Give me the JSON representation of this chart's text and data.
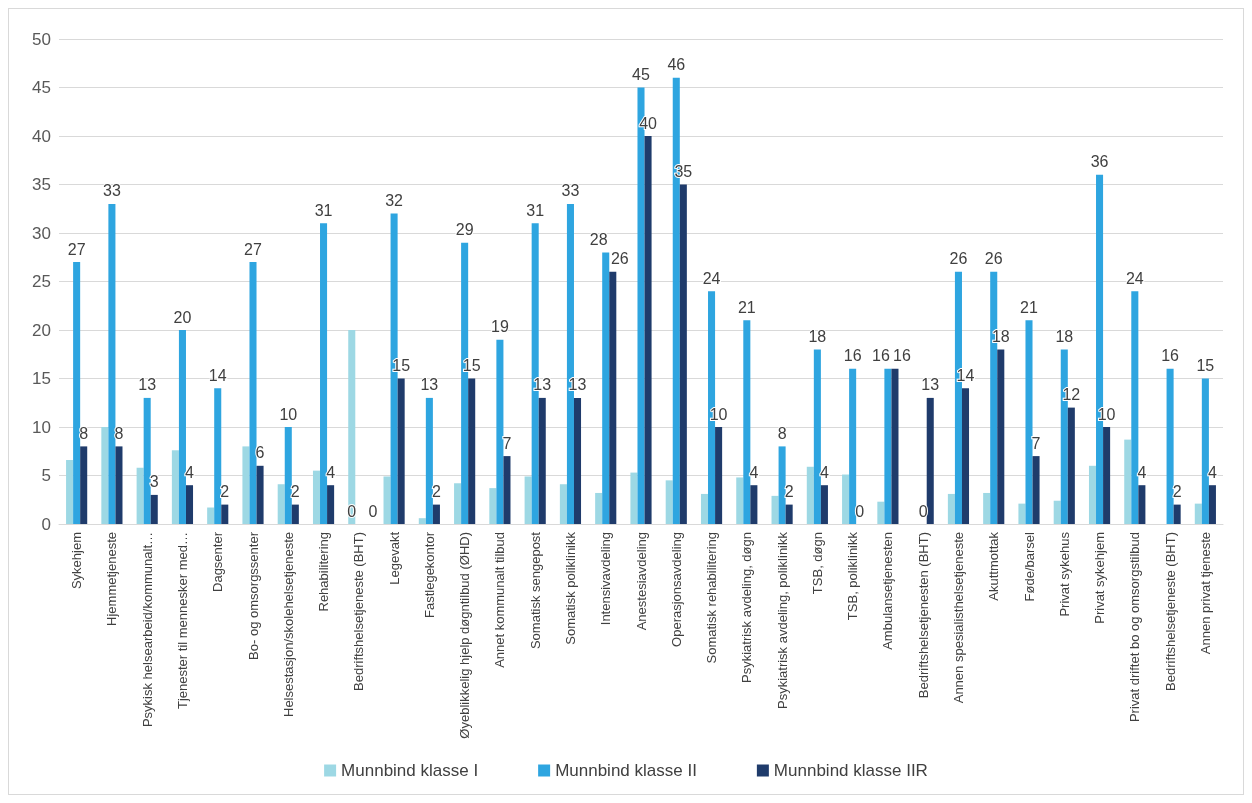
{
  "chart_data": {
    "type": "bar",
    "categories": [
      "Sykehjem",
      "Hjemmetjeneste",
      "Psykisk helsearbeid/kommunalt…",
      "Tjenester til mennesker med…",
      "Dagsenter",
      "Bo- og omsorgssenter",
      "Helsestasjon/skolehelsetjeneste",
      "Rehabilitering",
      "Bedriftshelsetjeneste (BHT)",
      "Legevakt",
      "Fastlegekontor",
      "Øyeblikkelig hjelp døgntilbud (ØHD)",
      "Annet kommunalt tilbud",
      "Somatisk sengepost",
      "Somatisk poliklinikk",
      "Intensivavdeling",
      "Anestesiavdeling",
      "Operasjonsavdeling",
      "Somatisk rehabilitering",
      "Psykiatrisk avdeling, døgn",
      "Psykiatrisk avdeling, poliklinikk",
      "TSB, døgn",
      "TSB, poliklinikk",
      "Ambulansetjenesten",
      "Bedriftshelsetjenesten (BHT)",
      "Annen spesialisthelsetjeneste",
      "Akuttmottak",
      "Føde/barsel",
      "Privat sykehus",
      "Privat sykehjem",
      "Privat driftet bo og omsorgstilbud",
      "Bedriftshelsetjeneste (BHT)",
      "Annen privat tjeneste"
    ],
    "series": [
      {
        "name": "Munnbind klasse I",
        "color": "#9dd8e4",
        "values": [
          6.6,
          10,
          5.8,
          7.6,
          1.7,
          8,
          4.1,
          5.5,
          20,
          4.9,
          0.6,
          4.2,
          3.7,
          4.9,
          4.1,
          3.2,
          5.3,
          4.5,
          3.1,
          4.8,
          2.9,
          5.9,
          5.1,
          2.3,
          0,
          3.1,
          3.2,
          2.1,
          2.4,
          6,
          8.7,
          0,
          2.1
        ]
      },
      {
        "name": "Munnbind klasse II",
        "color": "#2ea5e0",
        "values": [
          27,
          33,
          13,
          20,
          14,
          27,
          10,
          31,
          0,
          32,
          13,
          29,
          19,
          31,
          33,
          28,
          45,
          46,
          24,
          21,
          8,
          18,
          16,
          16,
          0,
          26,
          26,
          21,
          18,
          36,
          24,
          16,
          15
        ],
        "value_labels": [
          "27",
          "33",
          "13",
          "20",
          "14",
          "27",
          "10",
          "31",
          "0",
          "32",
          "13",
          "29",
          "19",
          "31",
          "33",
          "28",
          "45",
          "46",
          "24",
          "21",
          "8",
          "18",
          "16",
          "16",
          "0",
          "26",
          "26",
          "21",
          "18",
          "36",
          "24",
          "16",
          "15"
        ]
      },
      {
        "name": "Munnbind klasse IIR",
        "color": "#1f3b6b",
        "values": [
          8,
          8,
          3,
          4,
          2,
          6,
          2,
          4,
          0,
          15,
          2,
          15,
          7,
          13,
          13,
          26,
          40,
          35,
          10,
          4,
          2,
          4,
          0,
          16,
          13,
          14,
          18,
          7,
          12,
          10,
          4,
          2,
          4
        ],
        "value_labels": [
          "8",
          "8",
          "3",
          "4",
          "2",
          "6",
          "2",
          "4",
          "0",
          "15",
          "2",
          "15",
          "7",
          "13",
          "13",
          "26",
          "40",
          "35",
          "10",
          "4",
          "2",
          "4",
          "0",
          "16",
          "13",
          "14",
          "18",
          "7",
          "12",
          "10",
          "4",
          "2",
          "4"
        ]
      }
    ],
    "ylim": [
      0,
      50
    ],
    "yticks": [
      0,
      5,
      10,
      15,
      20,
      25,
      30,
      35,
      40,
      45,
      50
    ],
    "grid": "y",
    "legend": "bottom"
  }
}
